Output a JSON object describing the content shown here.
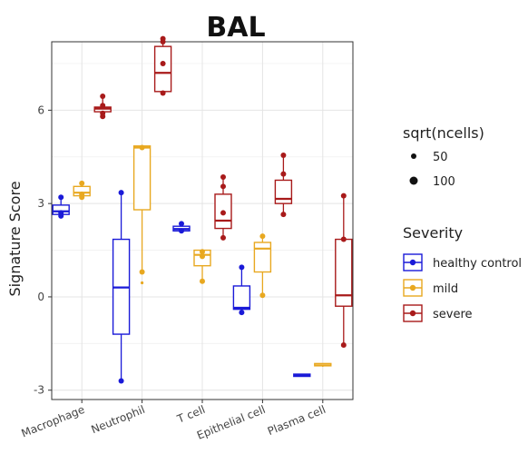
{
  "chart_data": {
    "type": "box",
    "title": "BAL",
    "xlabel": "",
    "ylabel": "Signature Score",
    "ylim": [
      -3.3,
      8.2
    ],
    "yticks": [
      -3,
      0,
      3,
      6
    ],
    "grid": true,
    "categories": [
      "Macrophage",
      "Neutrophil",
      "T cell",
      "Epithelial cell",
      "Plasma cell"
    ],
    "size_legend": {
      "title": "sqrt(ncells)",
      "entries": [
        {
          "label": "50",
          "value": 50
        },
        {
          "label": "100",
          "value": 100
        }
      ]
    },
    "color_legend": {
      "title": "Severity",
      "position": "right"
    },
    "series": [
      {
        "name": "healthy control",
        "color": "#1a1ad8",
        "boxes": [
          {
            "category": "Macrophage",
            "min": 2.6,
            "q1": 2.65,
            "median": 2.75,
            "q3": 2.95,
            "max": 3.2,
            "points": [
              3.2,
              2.6,
              2.7
            ]
          },
          {
            "category": "Neutrophil",
            "min": -2.7,
            "q1": -1.2,
            "median": 0.3,
            "q3": 1.85,
            "max": 3.35,
            "points": [
              3.35,
              -2.7
            ]
          },
          {
            "category": "T cell",
            "min": 2.1,
            "q1": 2.12,
            "median": 2.18,
            "q3": 2.27,
            "max": 2.35,
            "points": [
              2.35,
              2.12
            ]
          },
          {
            "category": "Epithelial cell",
            "min": -0.55,
            "q1": -0.4,
            "median": -0.35,
            "q3": 0.35,
            "max": 0.95,
            "points": [
              0.95,
              -0.5
            ]
          },
          {
            "category": "Plasma cell",
            "min": -2.52,
            "q1": -2.52,
            "median": -2.52,
            "q3": -2.52,
            "max": -2.52,
            "points": []
          }
        ]
      },
      {
        "name": "mild",
        "color": "#e8a820",
        "boxes": [
          {
            "category": "Macrophage",
            "min": 3.2,
            "q1": 3.25,
            "median": 3.35,
            "q3": 3.55,
            "max": 3.7,
            "points": [
              3.65,
              3.3,
              3.2
            ]
          },
          {
            "category": "Neutrophil",
            "min": 0.8,
            "q1": 2.8,
            "median": 4.8,
            "q3": 4.85,
            "max": 4.85,
            "points": [
              4.8,
              0.8
            ]
          },
          {
            "category": "T cell",
            "min": 0.5,
            "q1": 1.0,
            "median": 1.35,
            "q3": 1.5,
            "max": 1.5,
            "points": [
              1.45,
              1.3,
              0.5
            ]
          },
          {
            "category": "Epithelial cell",
            "min": 0.05,
            "q1": 0.8,
            "median": 1.55,
            "q3": 1.75,
            "max": 1.95,
            "points": [
              1.95,
              0.05
            ]
          },
          {
            "category": "Plasma cell",
            "min": -2.25,
            "q1": -2.22,
            "median": -2.2,
            "q3": -2.18,
            "max": -2.15,
            "points": []
          }
        ]
      },
      {
        "name": "severe",
        "color": "#a81a1a",
        "boxes": [
          {
            "category": "Macrophage",
            "min": 5.8,
            "q1": 5.95,
            "median": 6.05,
            "q3": 6.1,
            "max": 6.45,
            "points": [
              6.45,
              6.15,
              5.8,
              5.9
            ]
          },
          {
            "category": "Neutrophil",
            "min": 6.55,
            "q1": 6.6,
            "median": 7.2,
            "q3": 8.05,
            "max": 8.35,
            "points": [
              8.3,
              8.2,
              7.5,
              6.55
            ]
          },
          {
            "category": "T cell",
            "min": 1.85,
            "q1": 2.2,
            "median": 2.45,
            "q3": 3.3,
            "max": 3.85,
            "points": [
              3.85,
              3.55,
              2.7,
              1.9
            ]
          },
          {
            "category": "Epithelial cell",
            "min": 2.6,
            "q1": 3.0,
            "median": 3.15,
            "q3": 3.75,
            "max": 4.55,
            "points": [
              4.55,
              3.95,
              2.65
            ]
          },
          {
            "category": "Plasma cell",
            "min": -1.6,
            "q1": -0.3,
            "median": 0.05,
            "q3": 1.85,
            "max": 3.25,
            "points": [
              3.25,
              1.85,
              -1.55
            ]
          }
        ]
      }
    ],
    "outliers": [
      {
        "category": "Neutrophil",
        "series": "mild",
        "value": 0.45
      }
    ]
  }
}
